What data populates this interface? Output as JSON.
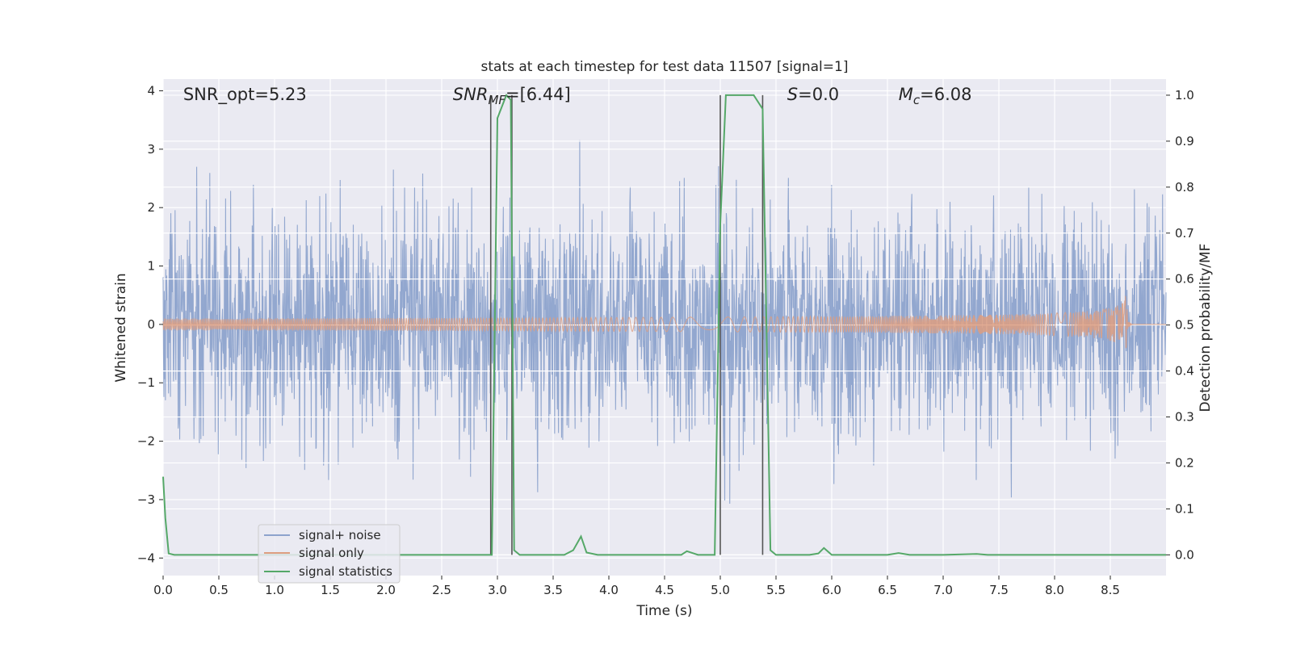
{
  "chart_data": {
    "type": "line",
    "title": "stats at each timestep for test data 11507 [signal=1]",
    "xlabel": "Time (s)",
    "ylabel": "Whitened strain",
    "ylabel_right": "Detection probability/MF",
    "xlim": [
      0.0,
      9.0
    ],
    "ylim": [
      -4.3,
      4.2
    ],
    "ylim_right": [
      -0.045,
      1.035
    ],
    "x_ticks": [
      "0.0",
      "0.5",
      "1.0",
      "1.5",
      "2.0",
      "2.5",
      "3.0",
      "3.5",
      "4.0",
      "4.5",
      "5.0",
      "5.5",
      "6.0",
      "6.5",
      "7.0",
      "7.5",
      "8.0",
      "8.5"
    ],
    "y_ticks": [
      "−4",
      "−3",
      "−2",
      "−1",
      "0",
      "1",
      "2",
      "3",
      "4"
    ],
    "y_ticks_right": [
      "0.0",
      "0.1",
      "0.2",
      "0.3",
      "0.4",
      "0.5",
      "0.6",
      "0.7",
      "0.8",
      "0.9",
      "1.0"
    ],
    "grid": true,
    "legend_position": "lower-left",
    "annotations": [
      {
        "name": "snr-opt",
        "prefix": "SNR_opt",
        "text": "=5.23",
        "x": 0.18
      },
      {
        "name": "snr-mf",
        "prefix": "SNR",
        "sub": "MF",
        "text": "=[6.44]",
        "x": 2.6
      },
      {
        "name": "s-stat",
        "prefix": "S",
        "text": "=0.0",
        "x": 5.6
      },
      {
        "name": "mc",
        "prefix": "M",
        "sub": "c",
        "text": "=6.08",
        "x": 6.6
      }
    ],
    "vertical_markers_s": [
      2.94,
      3.13,
      5.0,
      5.38
    ],
    "series": [
      {
        "name": "signal+ noise",
        "color": "#8da3cc",
        "style": "noise",
        "amplitude_sigma": 1.0
      },
      {
        "name": "signal only",
        "color": "#dd9e80",
        "style": "chirp",
        "merger_s": 8.65,
        "peak_amplitude": 0.7
      },
      {
        "name": "signal statistics",
        "color": "#55a868",
        "axis": "right",
        "x": [
          0.0,
          0.02,
          0.05,
          0.1,
          0.15,
          0.5,
          1.0,
          1.5,
          2.0,
          2.5,
          2.9,
          2.95,
          3.0,
          3.08,
          3.12,
          3.15,
          3.2,
          3.3,
          3.6,
          3.68,
          3.75,
          3.8,
          3.9,
          4.0,
          4.5,
          4.65,
          4.7,
          4.8,
          4.95,
          5.0,
          5.05,
          5.1,
          5.3,
          5.38,
          5.45,
          5.5,
          5.8,
          5.88,
          5.93,
          6.0,
          6.1,
          6.5,
          6.6,
          6.7,
          7.0,
          7.3,
          7.4,
          8.0,
          8.5,
          9.0
        ],
        "y": [
          0.17,
          0.08,
          0.003,
          0.0,
          0.0,
          0.0,
          0.0,
          0.0,
          0.0,
          0.0,
          0.0,
          0.0,
          0.95,
          1.0,
          0.99,
          0.01,
          0.0,
          0.0,
          0.0,
          0.01,
          0.04,
          0.005,
          0.0,
          0.0,
          0.0,
          0.0,
          0.008,
          0.0,
          0.0,
          0.72,
          1.0,
          1.0,
          1.0,
          0.97,
          0.01,
          0.0,
          0.0,
          0.003,
          0.015,
          0.0,
          0.0,
          0.0,
          0.004,
          0.0,
          0.0,
          0.002,
          0.0,
          0.0,
          0.0,
          0.0
        ]
      }
    ]
  }
}
